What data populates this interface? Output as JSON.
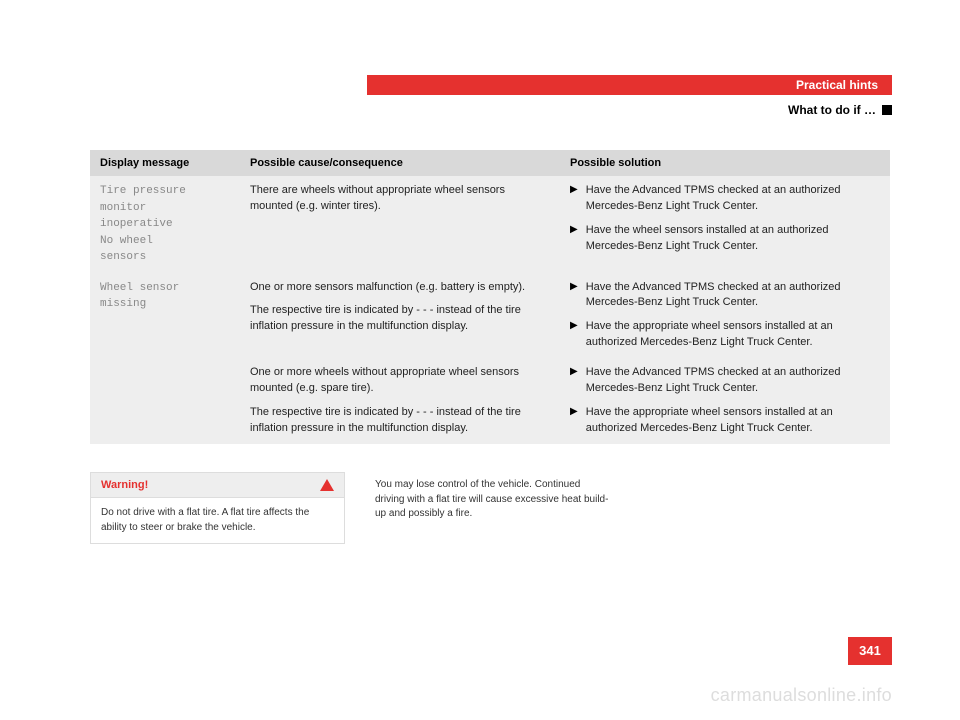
{
  "header": {
    "chapter": "Practical hints",
    "section": "What to do if …"
  },
  "table": {
    "columns": [
      "Display message",
      "Possible cause/consequence",
      "Possible solution"
    ],
    "rows": [
      {
        "message": "Tire pressure\nmonitor\ninoperative\nNo wheel\nsensors",
        "causes": [
          "There are wheels without appropriate wheel sensors mounted (e.g. winter tires)."
        ],
        "solutions": [
          "Have the Advanced TPMS checked at an authorized Mercedes-Benz Light Truck Center.",
          "Have the wheel sensors installed at an authorized Mercedes-Benz Light Truck Center."
        ]
      },
      {
        "message": "Wheel sensor\nmissing",
        "causes": [
          "One or more sensors malfunction (e.g. battery is empty).",
          "The respective tire is indicated by - - - instead of the tire inflation pressure in the multifunction display."
        ],
        "solutions": [
          "Have the Advanced TPMS checked at an authorized Mercedes-Benz Light Truck Center.",
          "Have the appropriate wheel sensors installed at an authorized Mercedes-Benz Light Truck Center."
        ]
      },
      {
        "message": "",
        "causes": [
          "One or more wheels without appropriate wheel sensors mounted (e.g. spare tire).",
          "The respective tire is indicated by - - - instead of the tire inflation pressure in the multifunction display."
        ],
        "solutions": [
          "Have the Advanced TPMS checked at an authorized Mercedes-Benz Light Truck Center.",
          "Have the appropriate wheel sensors installed at an authorized Mercedes-Benz Light Truck Center."
        ]
      }
    ]
  },
  "warning": {
    "title": "Warning!",
    "body": "Do not drive with a flat tire. A flat tire affects the ability to steer or brake the vehicle.",
    "note": "You may lose control of the vehicle. Continued driving with a flat tire will cause excessive heat build-up and possibly a fire."
  },
  "page_number": "341",
  "watermark": "carmanualsonline.info",
  "colors": {
    "accent": "#e5312f",
    "table_header_bg": "#d9d9d9",
    "table_body_bg": "#eeeeee",
    "mono_text": "#888888"
  }
}
